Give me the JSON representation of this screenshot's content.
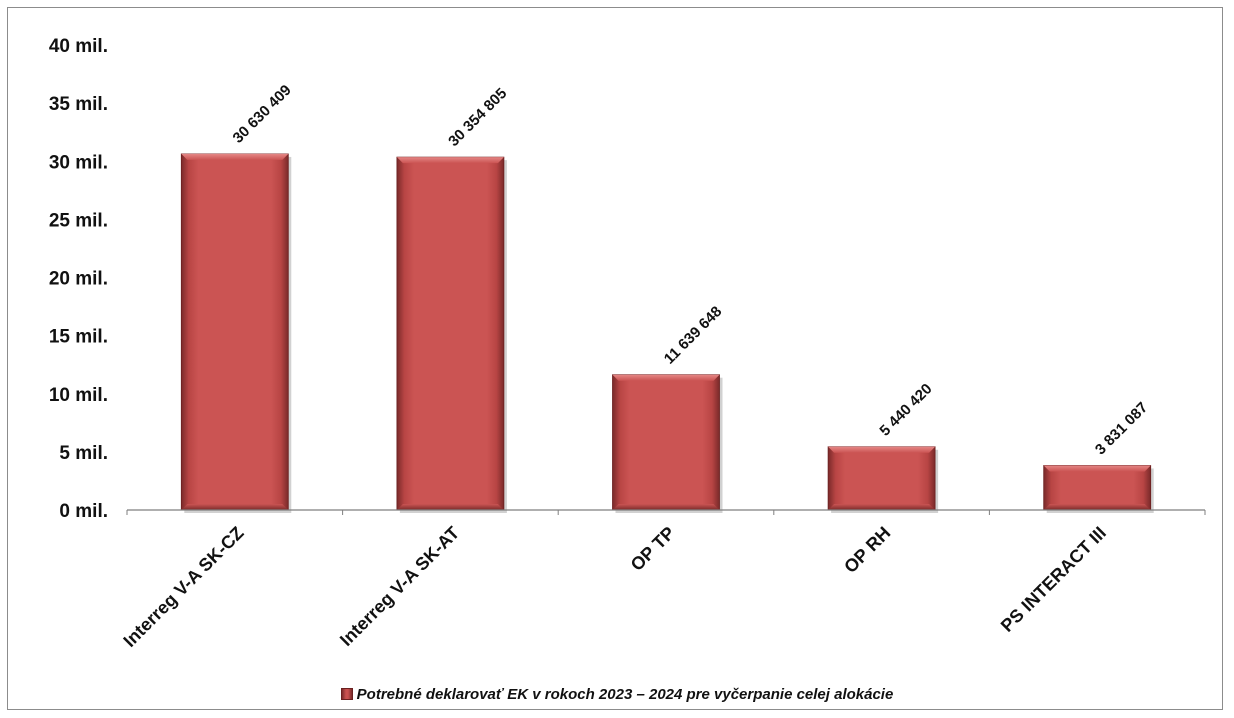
{
  "chart_data": {
    "type": "bar",
    "categories": [
      "Interreg V-A SK-CZ",
      "Interreg V-A SK-AT",
      "OP TP",
      "OP RH",
      "PS INTERACT III"
    ],
    "series": [
      {
        "name": "Potrebné deklarovať EK v rokoch 2023 – 2024 pre vyčerpanie celej alokácie",
        "values": [
          30630409,
          30354805,
          11639648,
          5440420,
          3831087
        ],
        "data_labels": [
          "30 630 409",
          "30 354 805",
          "11 639 648",
          "5 440 420",
          "3 831 087"
        ]
      }
    ],
    "y_ticks": [
      0,
      5000000,
      10000000,
      15000000,
      20000000,
      25000000,
      30000000,
      35000000,
      40000000
    ],
    "y_tick_labels": [
      "0 mil.",
      "5 mil.",
      "10 mil.",
      "15 mil.",
      "20 mil.",
      "25 mil.",
      "30 mil.",
      "35 mil.",
      "40 mil."
    ],
    "ylim": [
      0,
      40000000
    ],
    "title": "",
    "xlabel": "",
    "ylabel": "",
    "grid": false,
    "legend_position": "bottom",
    "colors": {
      "bar_fill": "#c9504f",
      "bar_dark": "#7a2a2a",
      "bar_light": "#e58786",
      "axis": "#7f7f7f"
    }
  },
  "legend": {
    "label": "Potrebné deklarovať EK v rokoch 2023 – 2024 pre vyčerpanie celej alokácie"
  }
}
